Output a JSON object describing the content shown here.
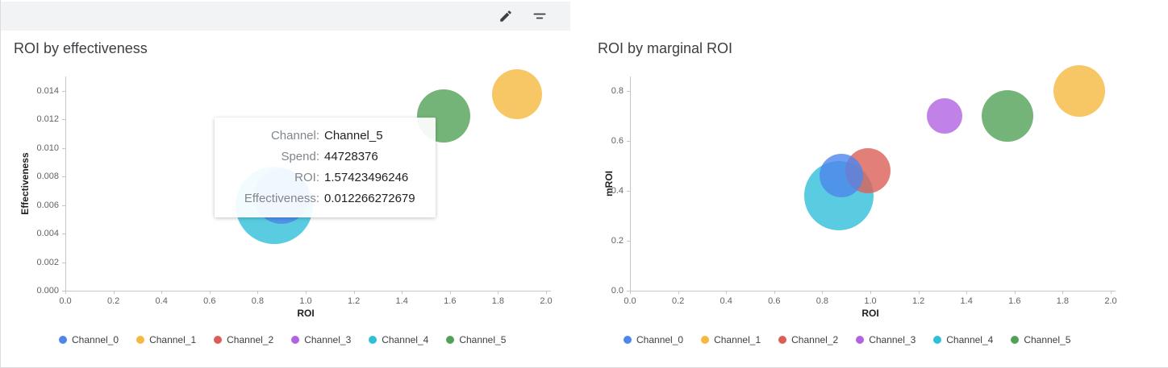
{
  "toolbar": {
    "edit_button": {
      "icon": "pencil"
    },
    "filter_button": {
      "icon": "filter-lines"
    }
  },
  "palette": {
    "Channel_0": "#4E86EC",
    "Channel_1": "#F6B93F",
    "Channel_2": "#DC5F57",
    "Channel_3": "#B163E1",
    "Channel_4": "#2FBFD9",
    "Channel_5": "#53A158"
  },
  "tooltip": {
    "rows": [
      {
        "label": "Channel:",
        "value": "Channel_5"
      },
      {
        "label": "Spend:",
        "value": "44728376"
      },
      {
        "label": "ROI:",
        "value": "1.57423496246"
      },
      {
        "label": "Effectiveness:",
        "value": "0.012266272679"
      }
    ]
  },
  "chart_data": [
    {
      "type": "scatter",
      "title": "ROI by effectiveness",
      "xlabel": "ROI",
      "ylabel": "Effectiveness",
      "xlim": [
        0,
        2
      ],
      "ylim": [
        0,
        0.014
      ],
      "x_ticks": [
        "0.0",
        "0.2",
        "0.4",
        "0.6",
        "0.8",
        "1.0",
        "1.2",
        "1.4",
        "1.6",
        "1.8",
        "2.0"
      ],
      "y_ticks": [
        "0.000",
        "0.002",
        "0.004",
        "0.006",
        "0.008",
        "0.010",
        "0.012",
        "0.014"
      ],
      "legend_position": "bottom",
      "grid": false,
      "points": [
        {
          "name": "Channel_4",
          "x": 0.87,
          "y": 0.006,
          "r": 48,
          "partially_hidden_by_tooltip": true
        },
        {
          "name": "Channel_0",
          "x": 0.9,
          "y": 0.0066,
          "r": 34,
          "partially_hidden_by_tooltip": true
        },
        {
          "name": "Channel_5",
          "x": 1.57423496246,
          "y": 0.012266272679,
          "r": 33,
          "spend": 44728376
        },
        {
          "name": "Channel_1",
          "x": 1.88,
          "y": 0.0138,
          "r": 31
        }
      ],
      "legend": [
        "Channel_0",
        "Channel_1",
        "Channel_2",
        "Channel_3",
        "Channel_4",
        "Channel_5"
      ]
    },
    {
      "type": "scatter",
      "title": "ROI by marginal ROI",
      "xlabel": "ROI",
      "ylabel": "mROI",
      "xlim": [
        0,
        2
      ],
      "ylim": [
        0,
        0.8
      ],
      "x_ticks": [
        "0.0",
        "0.2",
        "0.4",
        "0.6",
        "0.8",
        "1.0",
        "1.2",
        "1.4",
        "1.6",
        "1.8",
        "2.0"
      ],
      "y_ticks": [
        "0.0",
        "0.2",
        "0.4",
        "0.6",
        "0.8"
      ],
      "legend_position": "bottom",
      "grid": false,
      "points": [
        {
          "name": "Channel_4",
          "x": 0.87,
          "y": 0.38,
          "r": 43
        },
        {
          "name": "Channel_0",
          "x": 0.88,
          "y": 0.46,
          "r": 27
        },
        {
          "name": "Channel_2",
          "x": 0.99,
          "y": 0.48,
          "r": 28
        },
        {
          "name": "Channel_3",
          "x": 1.31,
          "y": 0.7,
          "r": 22
        },
        {
          "name": "Channel_5",
          "x": 1.57,
          "y": 0.7,
          "r": 32
        },
        {
          "name": "Channel_1",
          "x": 1.87,
          "y": 0.8,
          "r": 32
        }
      ],
      "legend": [
        "Channel_0",
        "Channel_1",
        "Channel_2",
        "Channel_3",
        "Channel_4",
        "Channel_5"
      ]
    }
  ]
}
